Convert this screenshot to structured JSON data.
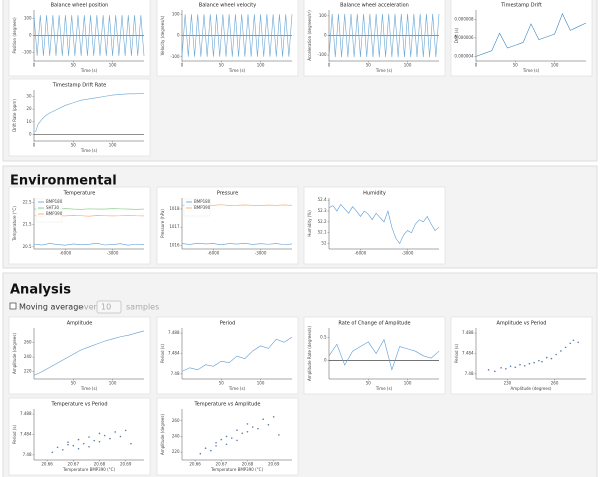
{
  "sections": [
    "Environmental",
    "Analysis"
  ],
  "controls": {
    "checkbox": "Moving average",
    "over": "over",
    "window": "10",
    "samples": "samples"
  },
  "chart_data": [
    {
      "type": "line",
      "title": "Balance wheel position",
      "xlabel": "Time (s)",
      "ylabel": "Position (degrees)",
      "zero_line": true,
      "x": [
        0,
        4,
        8,
        12,
        16,
        20,
        24,
        28,
        32,
        36,
        40,
        44,
        48,
        52,
        56,
        60,
        64,
        68,
        72,
        76,
        80,
        84,
        88,
        92,
        96,
        100,
        104,
        108,
        112,
        116,
        120,
        124,
        128,
        132,
        136,
        140
      ],
      "series": [
        {
          "color": "#6aa7d4",
          "values": [
            120,
            -120,
            120,
            -120,
            120,
            -120,
            120,
            -120,
            120,
            -120,
            120,
            -120,
            120,
            -120,
            120,
            -120,
            120,
            -120,
            120,
            -120,
            120,
            -120,
            120,
            -120,
            120,
            -120,
            120,
            -120,
            120,
            -120,
            120,
            -120,
            120,
            -120,
            120,
            -120
          ]
        }
      ],
      "xlim": [
        0,
        140
      ],
      "ylim": [
        -150,
        150
      ],
      "xticks": [
        0,
        50,
        100
      ],
      "yticks": [
        -100,
        0,
        100
      ]
    },
    {
      "type": "line",
      "title": "Balance wheel velocity",
      "xlabel": "Time (s)",
      "ylabel": "Velocity (degrees/s)",
      "zero_line": true,
      "x": [
        0,
        4,
        8,
        12,
        16,
        20,
        24,
        28,
        32,
        36,
        40,
        44,
        48,
        52,
        56,
        60,
        64,
        68,
        72,
        76,
        80,
        84,
        88,
        92,
        96,
        100,
        104,
        108,
        112,
        116,
        120,
        124,
        128,
        132,
        136,
        140
      ],
      "series": [
        {
          "color": "#6aa7d4",
          "values": [
            -100,
            100,
            -100,
            100,
            -100,
            100,
            -100,
            100,
            -100,
            100,
            -100,
            100,
            -100,
            100,
            -100,
            100,
            -100,
            100,
            -100,
            100,
            -100,
            100,
            -100,
            100,
            -100,
            100,
            -100,
            100,
            -100,
            100,
            -100,
            100,
            -100,
            100,
            -100,
            100
          ]
        }
      ],
      "xlim": [
        0,
        140
      ],
      "ylim": [
        -120,
        120
      ],
      "xticks": [
        0,
        50,
        100
      ],
      "yticks": [
        -100,
        0,
        100
      ]
    },
    {
      "type": "line",
      "title": "Balance wheel acceleration",
      "xlabel": "Time (s)",
      "ylabel": "Acceleration (degrees/s²)",
      "zero_line": true,
      "x": [
        0,
        4,
        8,
        12,
        16,
        20,
        24,
        28,
        32,
        36,
        40,
        44,
        48,
        52,
        56,
        60,
        64,
        68,
        72,
        76,
        80,
        84,
        88,
        92,
        96,
        100,
        104,
        108,
        112,
        116,
        120,
        124,
        128,
        132,
        136,
        140
      ],
      "series": [
        {
          "color": "#6aa7d4",
          "values": [
            -110,
            110,
            -110,
            110,
            -110,
            110,
            -110,
            110,
            -110,
            110,
            -110,
            110,
            -110,
            110,
            -110,
            110,
            -110,
            110,
            -110,
            110,
            -110,
            110,
            -110,
            110,
            -110,
            110,
            -110,
            110,
            -110,
            110,
            -110,
            110,
            -110,
            110,
            -110,
            110
          ]
        }
      ],
      "xlim": [
        0,
        140
      ],
      "ylim": [
        -130,
        130
      ],
      "xticks": [
        0,
        50,
        100
      ],
      "yticks": [
        -100,
        0,
        100
      ]
    },
    {
      "type": "line",
      "title": "Timestamp Drift",
      "xlabel": "Time (s)",
      "ylabel": "Drift (s)",
      "x": [
        0,
        10,
        20,
        30,
        40,
        50,
        60,
        70,
        80,
        90,
        100,
        110,
        120,
        130,
        140
      ],
      "series": [
        {
          "color": "#3a86c0",
          "values": [
            4e-06,
            4.3e-06,
            4.6e-06,
            6.5e-06,
            4.9e-06,
            5.2e-06,
            5.5e-06,
            7.5e-06,
            5.8e-06,
            6.1e-06,
            6.4e-06,
            8.6e-06,
            6.8e-06,
            7.2e-06,
            7.6e-06
          ]
        }
      ],
      "xlim": [
        0,
        140
      ],
      "ylim": [
        3.5e-06,
        9e-06
      ],
      "xticks": [
        0,
        50,
        100
      ],
      "yticks": [
        {
          "value": 4e-06,
          "label": "0.000004"
        },
        {
          "value": 6e-06,
          "label": "0.000006"
        },
        {
          "value": 8e-06,
          "label": "0.000008"
        }
      ]
    },
    {
      "type": "line",
      "title": "Timestamp Drift Rate",
      "xlabel": "Time (s)",
      "ylabel": "Drift Rate (ppm)",
      "zero_line": true,
      "x": [
        2,
        5,
        10,
        15,
        20,
        30,
        40,
        50,
        60,
        70,
        80,
        90,
        100,
        110,
        120,
        130,
        140
      ],
      "series": [
        {
          "color": "#6aa7d4",
          "values": [
            2,
            8,
            12,
            15,
            17,
            20,
            23,
            25,
            27,
            28,
            29,
            30,
            31,
            31.5,
            32,
            32,
            32.5
          ]
        }
      ],
      "xlim": [
        0,
        140
      ],
      "ylim": [
        -5,
        35
      ],
      "xticks": [
        0,
        50,
        100
      ],
      "yticks": [
        0,
        10,
        20,
        30
      ]
    },
    {
      "type": "line",
      "title": "Temperature",
      "ylabel": "Temperature (°C)",
      "legend": "top-left",
      "x": [
        -8000,
        -7500,
        -7000,
        -6500,
        -6000,
        -5500,
        -5000,
        -4500,
        -4000,
        -3500,
        -3000,
        -2500,
        -2000,
        -1500,
        -1000
      ],
      "series": [
        {
          "name": "BMP180",
          "color": "#5b9bd5",
          "values": [
            20.62,
            20.58,
            20.65,
            20.6,
            20.57,
            20.63,
            20.59,
            20.61,
            20.66,
            20.58,
            20.6,
            20.64,
            20.57,
            20.62,
            20.6
          ]
        },
        {
          "name": "SHT30",
          "color": "#7cc47c",
          "values": [
            22.2,
            22.21,
            22.19,
            22.2,
            22.22,
            22.2,
            22.19,
            22.21,
            22.2,
            22.2,
            22.22,
            22.21,
            22.2,
            22.19,
            22.2
          ]
        },
        {
          "name": "BMP390",
          "color": "#f5a35c",
          "values": [
            21.9,
            21.88,
            21.91,
            21.9,
            21.89,
            21.92,
            21.9,
            21.88,
            21.91,
            21.9,
            21.89,
            21.9,
            21.92,
            21.9,
            21.89
          ]
        }
      ],
      "xlim": [
        -8000,
        -1000
      ],
      "ylim": [
        20.4,
        22.7
      ],
      "xticks": [
        -6000,
        -3000
      ],
      "yticks": [
        20.5,
        21.5,
        22.5
      ]
    },
    {
      "type": "line",
      "title": "Pressure",
      "ylabel": "Pressure (hPa)",
      "legend": "top-left",
      "x": [
        -8000,
        -7500,
        -7000,
        -6500,
        -6000,
        -5500,
        -5000,
        -4500,
        -4000,
        -3500,
        -3000,
        -2500,
        -2000,
        -1500,
        -1000
      ],
      "series": [
        {
          "name": "BMP180",
          "color": "#5b9bd5",
          "values": [
            1016.1,
            1016.05,
            1016.12,
            1016.08,
            1016.1,
            1016.03,
            1016.1,
            1016.07,
            1016.11,
            1016.05,
            1016.09,
            1016.06,
            1016.1,
            1016.04,
            1016.08
          ]
        },
        {
          "name": "BMP390",
          "color": "#f5a35c",
          "values": [
            1018.2,
            1018.22,
            1018.18,
            1018.21,
            1018.2,
            1018.23,
            1018.19,
            1018.2,
            1018.22,
            1018.2,
            1018.18,
            1018.21,
            1018.2,
            1018.22,
            1018.2
          ]
        }
      ],
      "xlim": [
        -8000,
        -1000
      ],
      "ylim": [
        1015.8,
        1018.6
      ],
      "xticks": [
        -6000,
        -3000
      ],
      "yticks": [
        1016,
        1017,
        1018
      ]
    },
    {
      "type": "line",
      "title": "Humidity",
      "ylabel": "Humidity (%)",
      "x": [
        -8000,
        -7750,
        -7500,
        -7250,
        -7000,
        -6750,
        -6500,
        -6250,
        -6000,
        -5750,
        -5500,
        -5250,
        -5000,
        -4750,
        -4500,
        -4250,
        -4000,
        -3750,
        -3500,
        -3250,
        -3000,
        -2750,
        -2500,
        -2250,
        -2000,
        -1750,
        -1500,
        -1250,
        -1000
      ],
      "series": [
        {
          "color": "#5b9bd5",
          "values": [
            52.33,
            52.35,
            52.3,
            52.36,
            52.32,
            52.28,
            52.34,
            52.3,
            52.25,
            52.3,
            52.27,
            52.22,
            52.28,
            52.24,
            52.2,
            52.3,
            52.15,
            52.05,
            52.0,
            52.08,
            52.12,
            52.1,
            52.18,
            52.22,
            52.2,
            52.25,
            52.18,
            52.12,
            52.15
          ]
        }
      ],
      "xlim": [
        -8000,
        -1000
      ],
      "ylim": [
        51.95,
        52.42
      ],
      "xticks": [
        -6000,
        -3000
      ],
      "yticks": [
        52.0,
        52.1,
        52.2,
        52.3,
        52.4
      ]
    },
    {
      "type": "line",
      "title": "Amplitude",
      "xlabel": "Time (s)",
      "ylabel": "Amplitude (degrees)",
      "x": [
        0,
        10,
        20,
        30,
        40,
        50,
        60,
        70,
        80,
        90,
        100,
        110,
        120,
        130,
        140
      ],
      "series": [
        {
          "color": "#5b9bd5",
          "values": [
            215,
            220,
            226,
            232,
            238,
            244,
            250,
            254,
            258,
            262,
            265,
            268,
            270,
            273,
            276
          ]
        }
      ],
      "xlim": [
        0,
        140
      ],
      "ylim": [
        210,
        280
      ],
      "xticks": [
        50,
        100
      ],
      "yticks": [
        220,
        240,
        260
      ]
    },
    {
      "type": "line",
      "title": "Period",
      "xlabel": "Time (s)",
      "ylabel": "Period (s)",
      "x": [
        0,
        10,
        20,
        30,
        40,
        50,
        60,
        70,
        80,
        90,
        100,
        110,
        120,
        130,
        140
      ],
      "series": [
        {
          "color": "#5b9bd5",
          "values": [
            7.4805,
            7.4812,
            7.4808,
            7.4818,
            7.4815,
            7.4825,
            7.4822,
            7.4835,
            7.483,
            7.4845,
            7.4855,
            7.485,
            7.4868,
            7.4862,
            7.4872
          ]
        }
      ],
      "xlim": [
        0,
        140
      ],
      "ylim": [
        7.479,
        7.489
      ],
      "xticks": [
        50,
        100
      ],
      "yticks": [
        7.48,
        7.484,
        7.488
      ]
    },
    {
      "type": "line",
      "title": "Rate of Change of Amplitude",
      "xlabel": "Time (s)",
      "ylabel": "Amplitude Rate (degrees/s)",
      "zero_line": true,
      "x": [
        0,
        10,
        20,
        30,
        40,
        50,
        60,
        70,
        80,
        90,
        100,
        110,
        120,
        130,
        140
      ],
      "series": [
        {
          "color": "#5b9bd5",
          "values": [
            0.1,
            0.35,
            -0.1,
            0.2,
            0.3,
            0.4,
            0.15,
            0.45,
            -0.2,
            0.3,
            0.25,
            0.2,
            0.1,
            0.05,
            0.2
          ]
        }
      ],
      "xlim": [
        0,
        140
      ],
      "ylim": [
        -0.4,
        0.7
      ],
      "xticks": [
        50,
        100
      ],
      "yticks": [
        0,
        0.5
      ]
    },
    {
      "type": "scatter",
      "title": "Amplitude vs Period",
      "xlabel": "Amplitude (degrees)",
      "ylabel": "Period (s)",
      "color": "#5b7fa8",
      "x": [
        218,
        222,
        226,
        229,
        232,
        235,
        238,
        241,
        244,
        247,
        250,
        252,
        255,
        258,
        261,
        264,
        267,
        270,
        272,
        275
      ],
      "values": [
        7.4808,
        7.4805,
        7.4812,
        7.481,
        7.4815,
        7.4813,
        7.4818,
        7.4816,
        7.482,
        7.4822,
        7.4826,
        7.4824,
        7.4832,
        7.483,
        7.4838,
        7.4845,
        7.4852,
        7.486,
        7.4866,
        7.4862
      ],
      "xlim": [
        210,
        280
      ],
      "ylim": [
        7.479,
        7.489
      ],
      "xticks": [
        230,
        260
      ],
      "yticks": [
        7.48,
        7.484,
        7.488
      ]
    },
    {
      "type": "scatter",
      "title": "Temperature vs Period",
      "xlabel": "Temperature BMP390 (°C)",
      "ylabel": "Period (s)",
      "color": "#5b7fa8",
      "x": [
        20.662,
        20.664,
        20.666,
        20.668,
        20.668,
        20.67,
        20.672,
        20.672,
        20.674,
        20.676,
        20.676,
        20.678,
        20.68,
        20.68,
        20.682,
        20.684,
        20.686,
        20.688,
        20.69,
        20.692
      ],
      "values": [
        7.4805,
        7.4815,
        7.481,
        7.4825,
        7.482,
        7.4818,
        7.483,
        7.4812,
        7.4822,
        7.4835,
        7.4816,
        7.4828,
        7.4842,
        7.4826,
        7.4838,
        7.4832,
        7.4845,
        7.4836,
        7.4848,
        7.4822
      ],
      "xlim": [
        20.655,
        20.697
      ],
      "ylim": [
        7.479,
        7.489
      ],
      "xticks": [
        20.66,
        20.67,
        20.68,
        20.69
      ],
      "yticks": [
        7.48,
        7.484,
        7.488
      ]
    },
    {
      "type": "scatter",
      "title": "Temperature vs Amplitude",
      "xlabel": "Temperature BMP390 (°C)",
      "ylabel": "Amplitude (degrees)",
      "color": "#5b7fa8",
      "x": [
        20.662,
        20.664,
        20.666,
        20.668,
        20.668,
        20.67,
        20.672,
        20.672,
        20.674,
        20.676,
        20.676,
        20.678,
        20.68,
        20.68,
        20.682,
        20.684,
        20.686,
        20.688,
        20.69,
        20.692
      ],
      "values": [
        218,
        225,
        222,
        232,
        228,
        236,
        240,
        230,
        238,
        248,
        235,
        244,
        256,
        246,
        252,
        250,
        262,
        255,
        265,
        242
      ],
      "xlim": [
        20.655,
        20.697
      ],
      "ylim": [
        210,
        275
      ],
      "xticks": [
        20.66,
        20.67,
        20.68,
        20.69
      ],
      "yticks": [
        220,
        240,
        260
      ]
    }
  ]
}
